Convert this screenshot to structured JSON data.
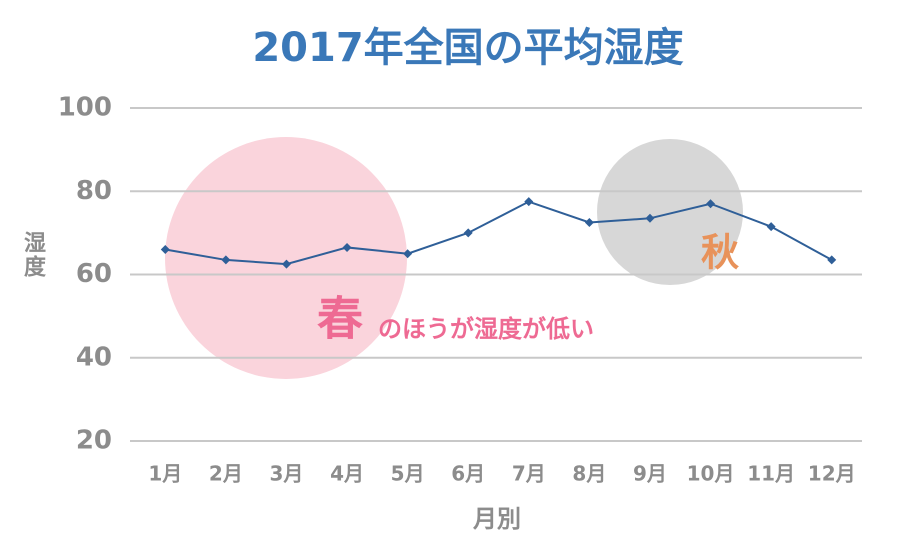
{
  "chart_data": {
    "type": "line",
    "title": "2017年全国の平均湿度",
    "y_label": "湿度",
    "x_label": "月別",
    "categories": [
      "1月",
      "2月",
      "3月",
      "4月",
      "5月",
      "6月",
      "7月",
      "8月",
      "9月",
      "10月",
      "11月",
      "12月"
    ],
    "series": [
      {
        "name": "平均湿度",
        "color": "#2f5f98",
        "values": [
          66,
          63.5,
          62.5,
          66.5,
          65,
          70,
          77.5,
          72.5,
          73.5,
          77,
          71.5,
          63.5
        ]
      }
    ],
    "ylim": [
      20,
      100
    ],
    "yticks": [
      20,
      40,
      60,
      80,
      100
    ],
    "grid": true,
    "annotations": [
      "春",
      "のほうが湿度が低い",
      "秋"
    ]
  }
}
